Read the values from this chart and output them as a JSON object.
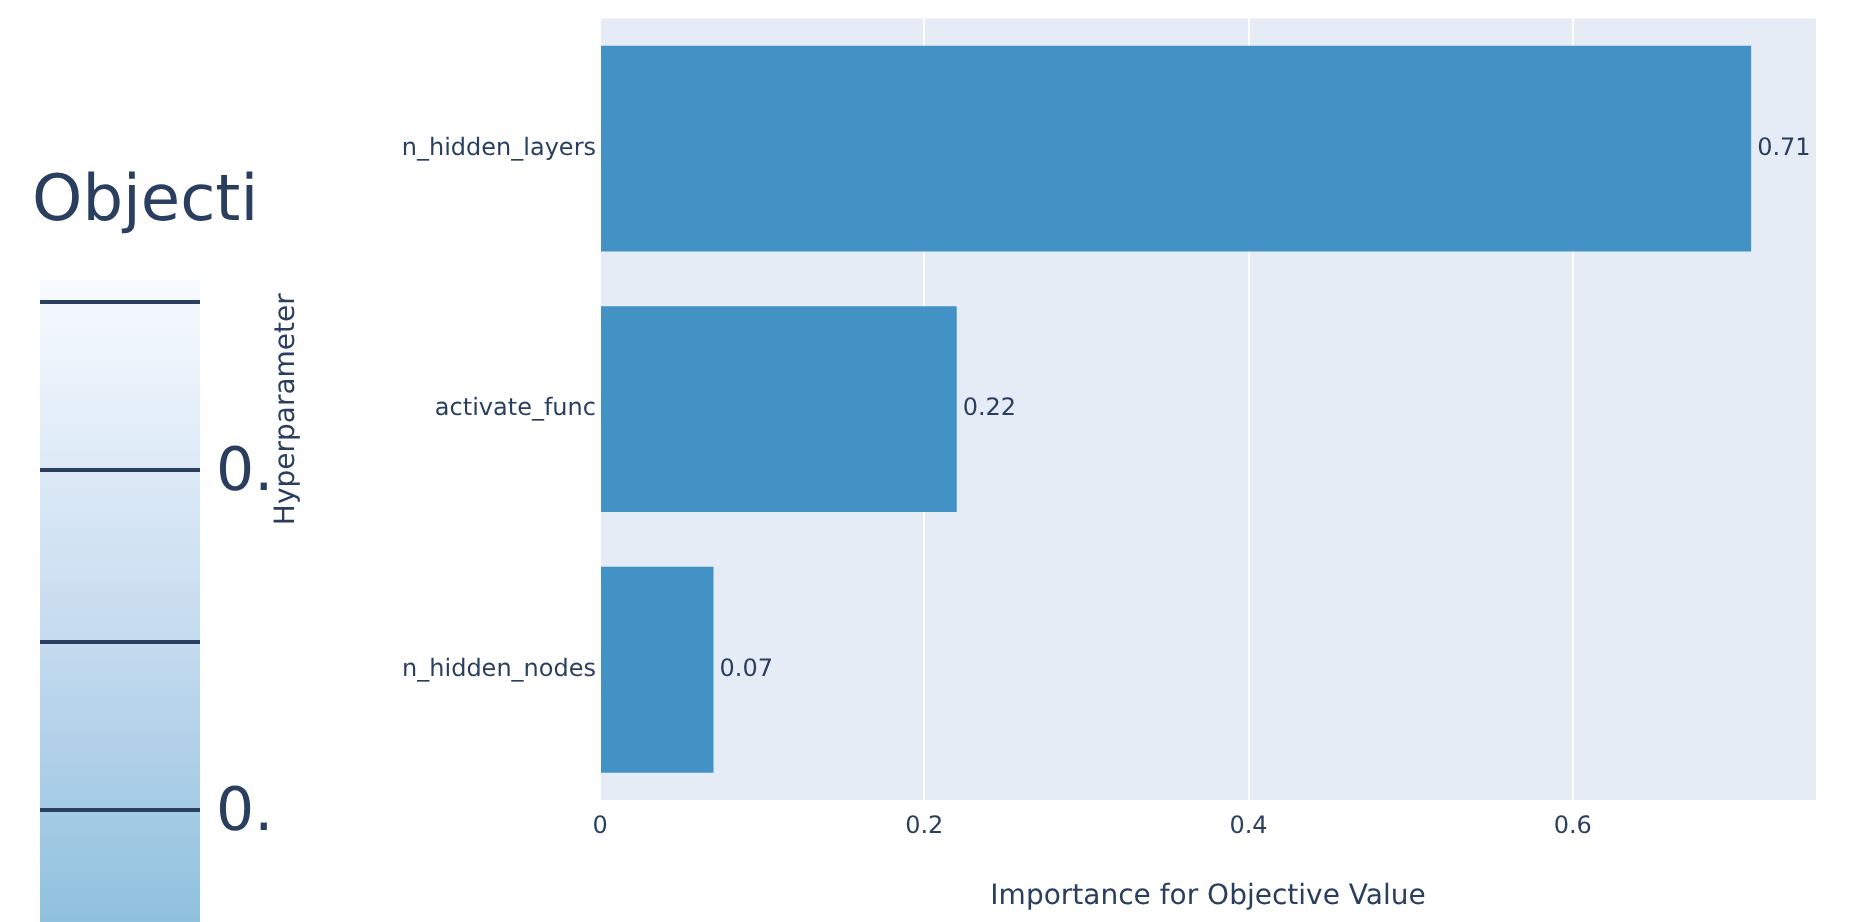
{
  "chart_data": {
    "type": "bar",
    "orientation": "horizontal",
    "xlabel": "Importance for Objective Value",
    "ylabel": "Hyperparameter",
    "categories": [
      "n_hidden_layers",
      "activate_func",
      "n_hidden_nodes"
    ],
    "values": [
      0.71,
      0.22,
      0.07
    ],
    "color": "#4292c6",
    "data_labels": true,
    "xlim": [
      0,
      0.75
    ],
    "xticks": [
      0,
      0.2,
      0.4,
      0.6
    ],
    "grid": "x",
    "legend": false,
    "annotations": [
      "Objecti",
      "0.",
      "0."
    ]
  }
}
